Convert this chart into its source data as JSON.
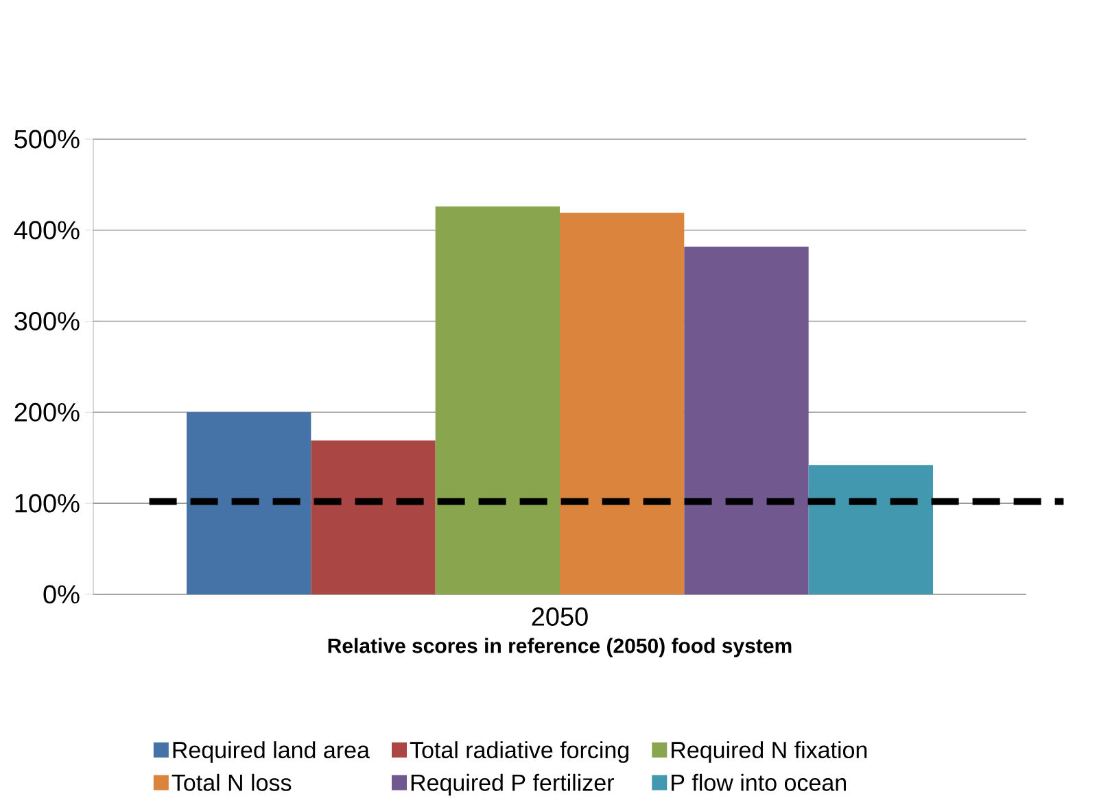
{
  "chart_data": {
    "type": "bar",
    "xlabel": "Relative scores in reference (2050) food system",
    "categories": [
      "2050"
    ],
    "series": [
      {
        "name": "Required land area",
        "color": "#4572a7",
        "values": [
          200
        ]
      },
      {
        "name": "Total radiative forcing",
        "color": "#aa4643",
        "values": [
          169
        ]
      },
      {
        "name": "Required N fixation",
        "color": "#89a54e",
        "values": [
          426
        ]
      },
      {
        "name": "Total N loss",
        "color": "#db843d",
        "values": [
          419
        ]
      },
      {
        "name": "Required P fertilizer",
        "color": "#71588f",
        "values": [
          382
        ]
      },
      {
        "name": "P flow into ocean",
        "color": "#4198af",
        "values": [
          142
        ]
      }
    ],
    "ylim": [
      0,
      500
    ],
    "yticks": [
      {
        "value": 0,
        "label": "0%"
      },
      {
        "value": 100,
        "label": "100%"
      },
      {
        "value": 200,
        "label": "200%"
      },
      {
        "value": 300,
        "label": "300%"
      },
      {
        "value": 400,
        "label": "400%"
      },
      {
        "value": 500,
        "label": "500%"
      }
    ],
    "grid": "y",
    "legend": "bottom",
    "ref_lines": [
      {
        "axis": "y",
        "value": 102,
        "color": "#000000",
        "line_style": "dashed"
      }
    ]
  }
}
